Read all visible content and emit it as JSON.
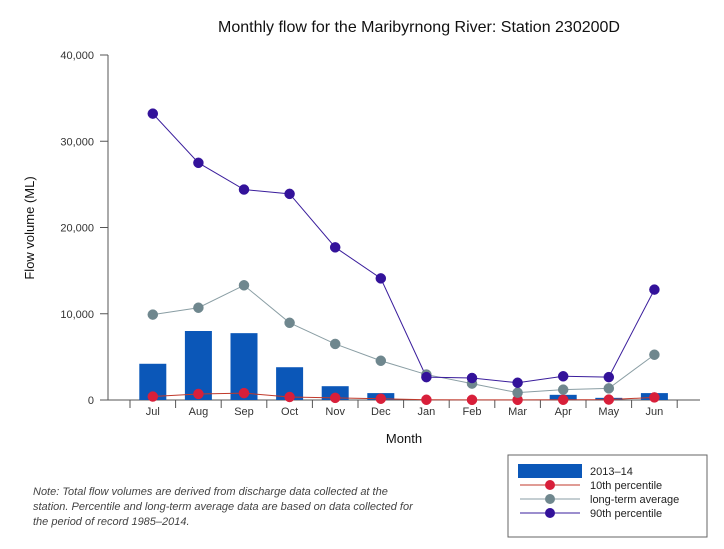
{
  "chart_data": {
    "type": "bar",
    "title": "Monthly flow for the Maribyrnong River: Station 230200D",
    "xlabel": "Month",
    "ylabel": "Flow volume (ML)",
    "ylim": [
      0,
      40000
    ],
    "yticks": [
      0,
      10000,
      20000,
      30000,
      40000
    ],
    "ytick_labels": [
      "0",
      "10,000",
      "20,000",
      "30,000",
      "40,000"
    ],
    "categories": [
      "Jul",
      "Aug",
      "Sep",
      "Oct",
      "Nov",
      "Dec",
      "Jan",
      "Feb",
      "Mar",
      "Apr",
      "May",
      "Jun"
    ],
    "series": [
      {
        "name": "2013–14",
        "kind": "bar",
        "color": "#0b57b8",
        "values": [
          4200,
          8000,
          7750,
          3800,
          1600,
          800,
          50,
          50,
          50,
          600,
          250,
          800
        ]
      },
      {
        "name": "10th percentile",
        "kind": "line",
        "color": "#d81f3a",
        "line_color": "#c0392b",
        "values": [
          400,
          700,
          800,
          350,
          250,
          150,
          30,
          20,
          20,
          30,
          50,
          300
        ]
      },
      {
        "name": "long-term average",
        "kind": "line",
        "color": "#6f878e",
        "line_color": "#8a9ea4",
        "values": [
          9900,
          10700,
          13300,
          8950,
          6500,
          4550,
          2950,
          1900,
          850,
          1200,
          1350,
          5250
        ]
      },
      {
        "name": "90th percentile",
        "kind": "line",
        "color": "#33129a",
        "line_color": "#3a1d9c",
        "values": [
          33200,
          27500,
          24400,
          23900,
          17700,
          14100,
          2650,
          2550,
          2000,
          2750,
          2650,
          12800
        ]
      }
    ],
    "legend_position": "bottom-right",
    "grid": false
  },
  "note": "Note: Total flow volumes are derived from discharge data collected at the station. Percentile and long-term average data are based on data collected for the period of record 1985–2014."
}
